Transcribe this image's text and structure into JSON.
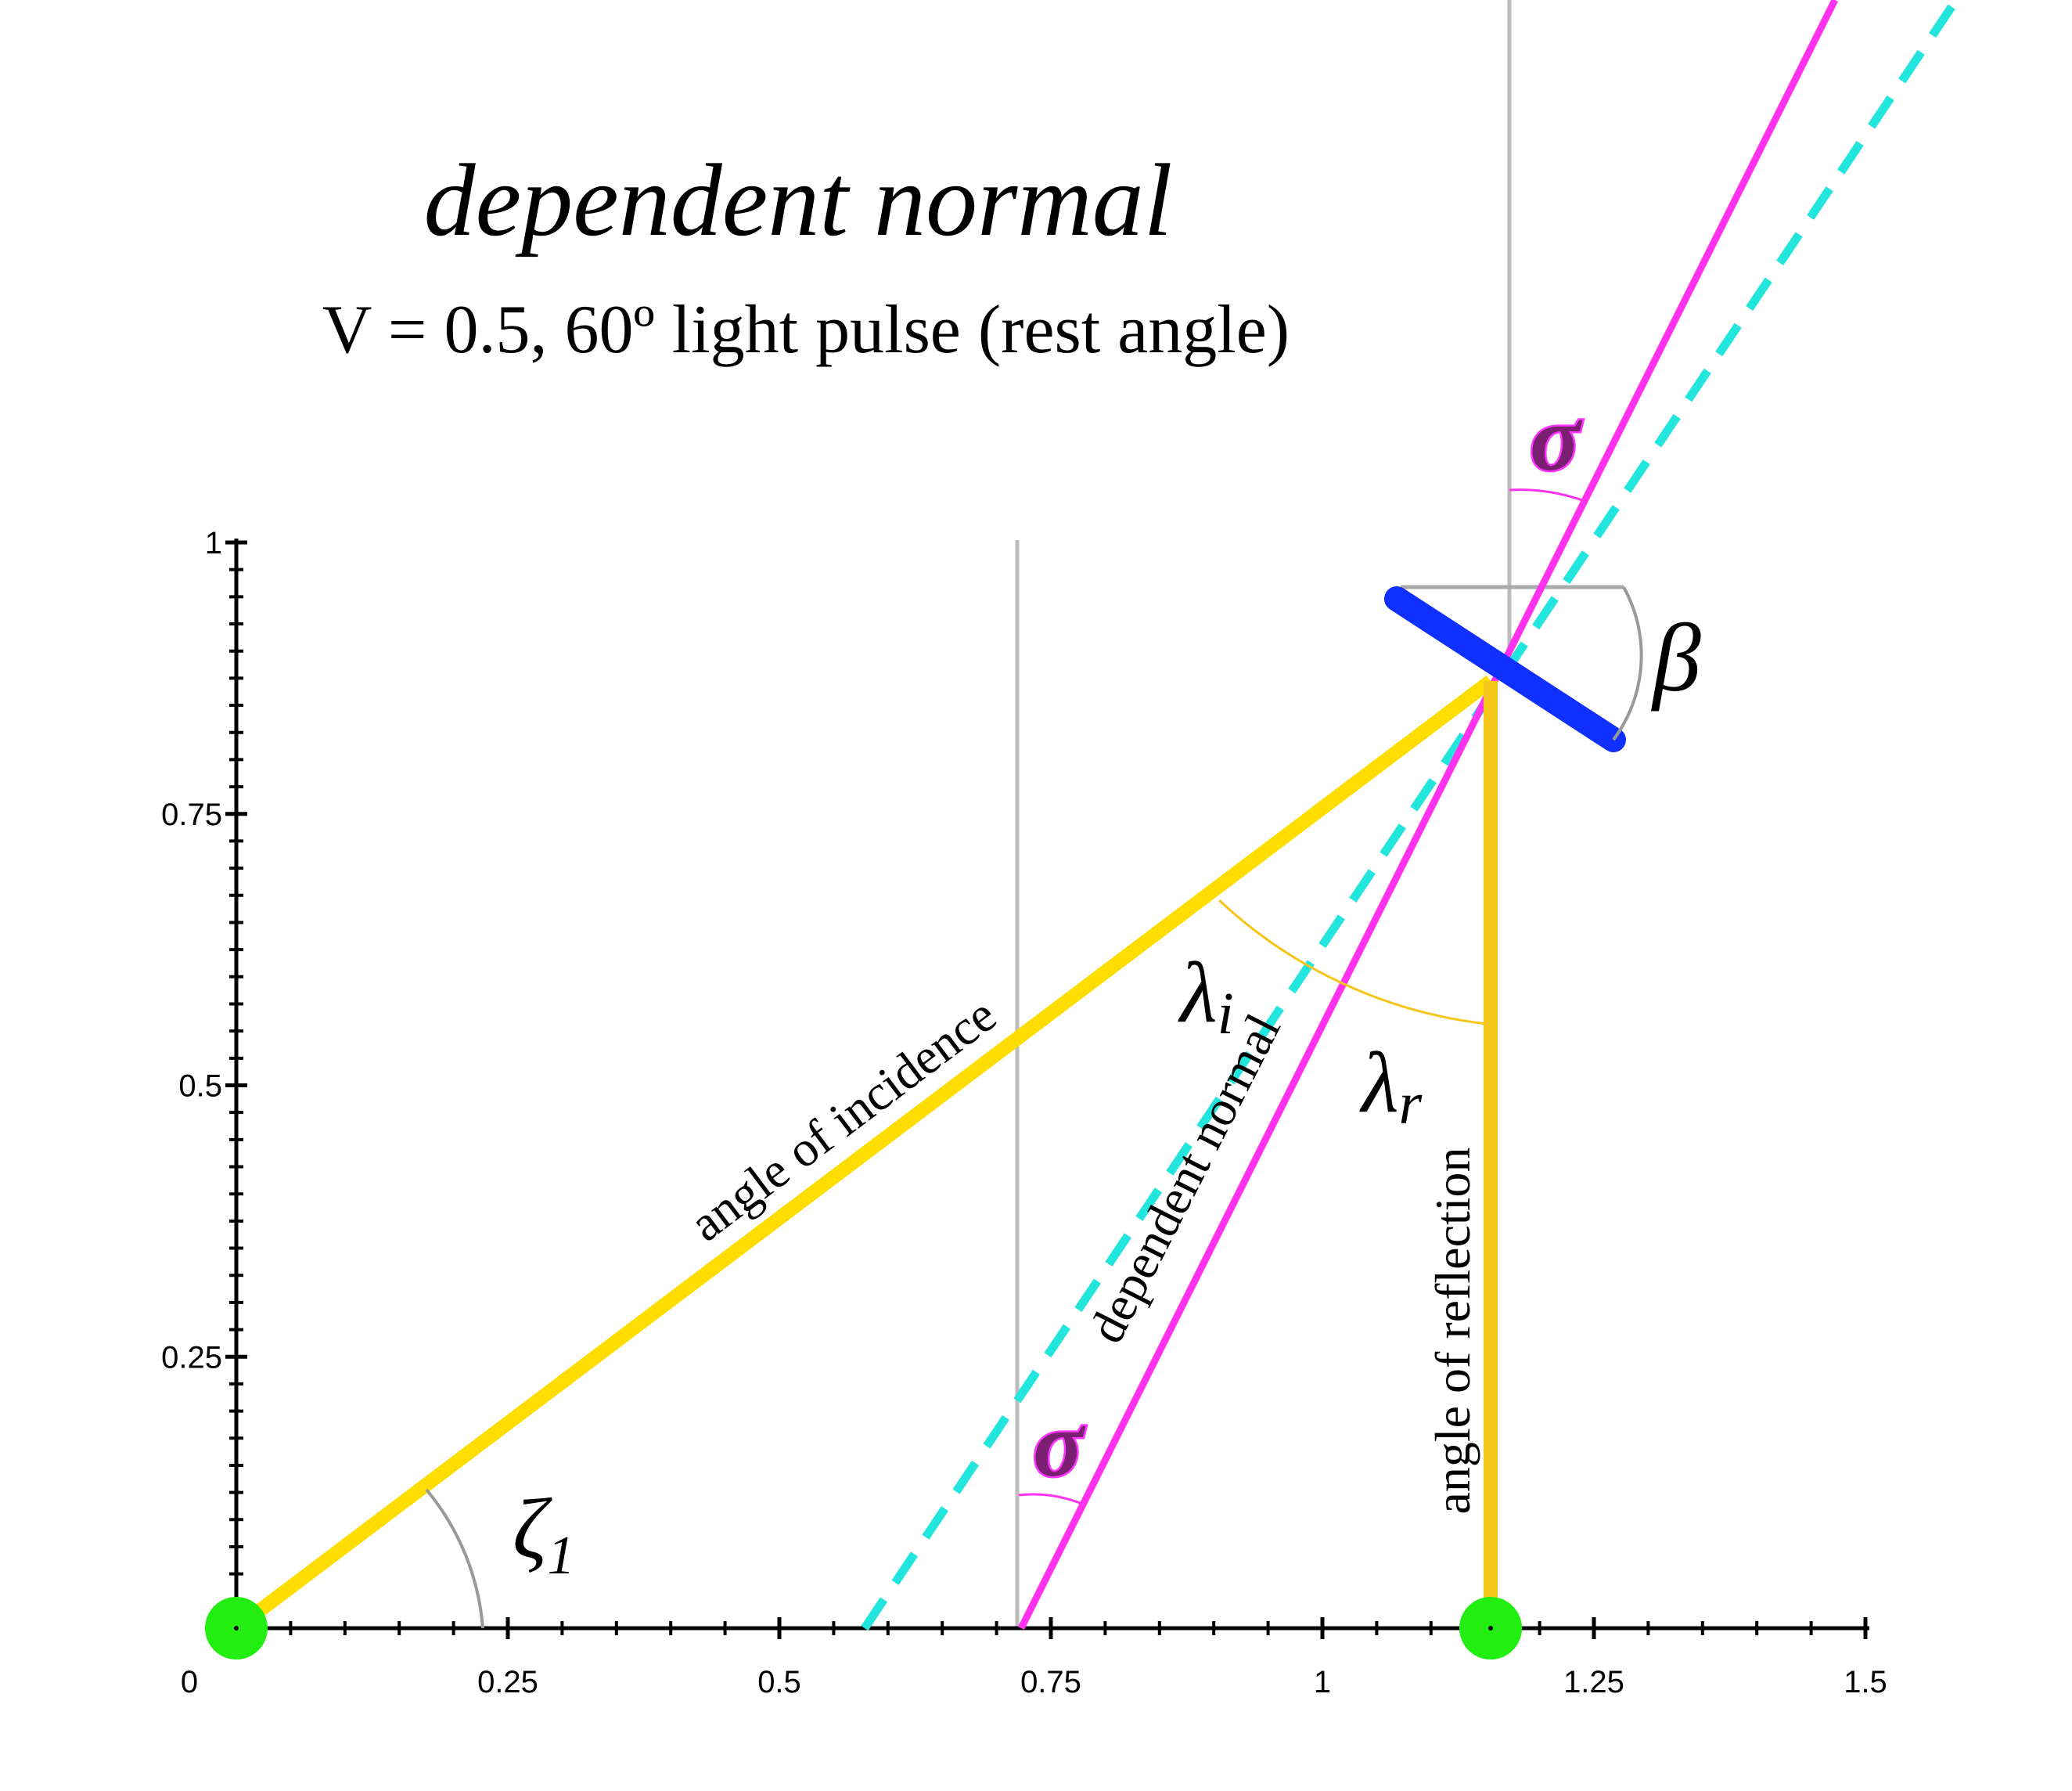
{
  "title": "dependent normal",
  "subtitle": "V = 0.5,   60º light pulse (rest angle)",
  "axes": {
    "x_ticks": [
      "0",
      "0.25",
      "0.5",
      "0.75",
      "1",
      "1.25",
      "1.5"
    ],
    "y_ticks": [
      "0.25",
      "0.5",
      "0.75",
      "1"
    ],
    "x_range": [
      0,
      1.5
    ],
    "y_range": [
      0,
      1
    ]
  },
  "labels": {
    "incidence": "angle of incidence",
    "normal": "dependent normal",
    "reflection": "angle of reflection",
    "zeta": "ζ",
    "zeta_sub": "1",
    "lambda_i": "λ",
    "lambda_i_sub": "i",
    "lambda_r": "λ",
    "lambda_r_sub": "r",
    "beta": "β",
    "sigma_top": "σ",
    "sigma_bottom": "σ"
  },
  "colors": {
    "light_path": "#ffdd00",
    "dependent_normal": "#ff33ee",
    "dashed_normal": "#22e6dd",
    "mirror": "#1030ff",
    "endpoints": "#22ee11",
    "guide": "#bbbbbb",
    "axis": "#000000"
  }
}
